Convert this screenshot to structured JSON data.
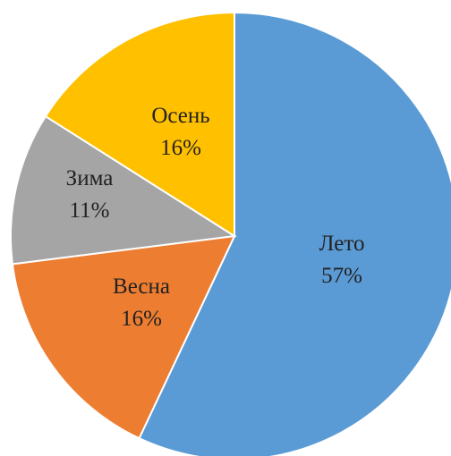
{
  "chart_data": {
    "type": "pie",
    "slices": [
      {
        "label": "Лето",
        "value": 57,
        "value_label": "57%",
        "color": "#5B9BD5"
      },
      {
        "label": "Весна",
        "value": 16,
        "value_label": "16%",
        "color": "#ED7D31"
      },
      {
        "label": "Зима",
        "value": 11,
        "value_label": "11%",
        "color": "#A5A5A5"
      },
      {
        "label": "Осень",
        "value": 16,
        "value_label": "16%",
        "color": "#FFC000"
      }
    ],
    "start_angle_deg": 0,
    "direction": "clockwise",
    "legend": "none"
  }
}
